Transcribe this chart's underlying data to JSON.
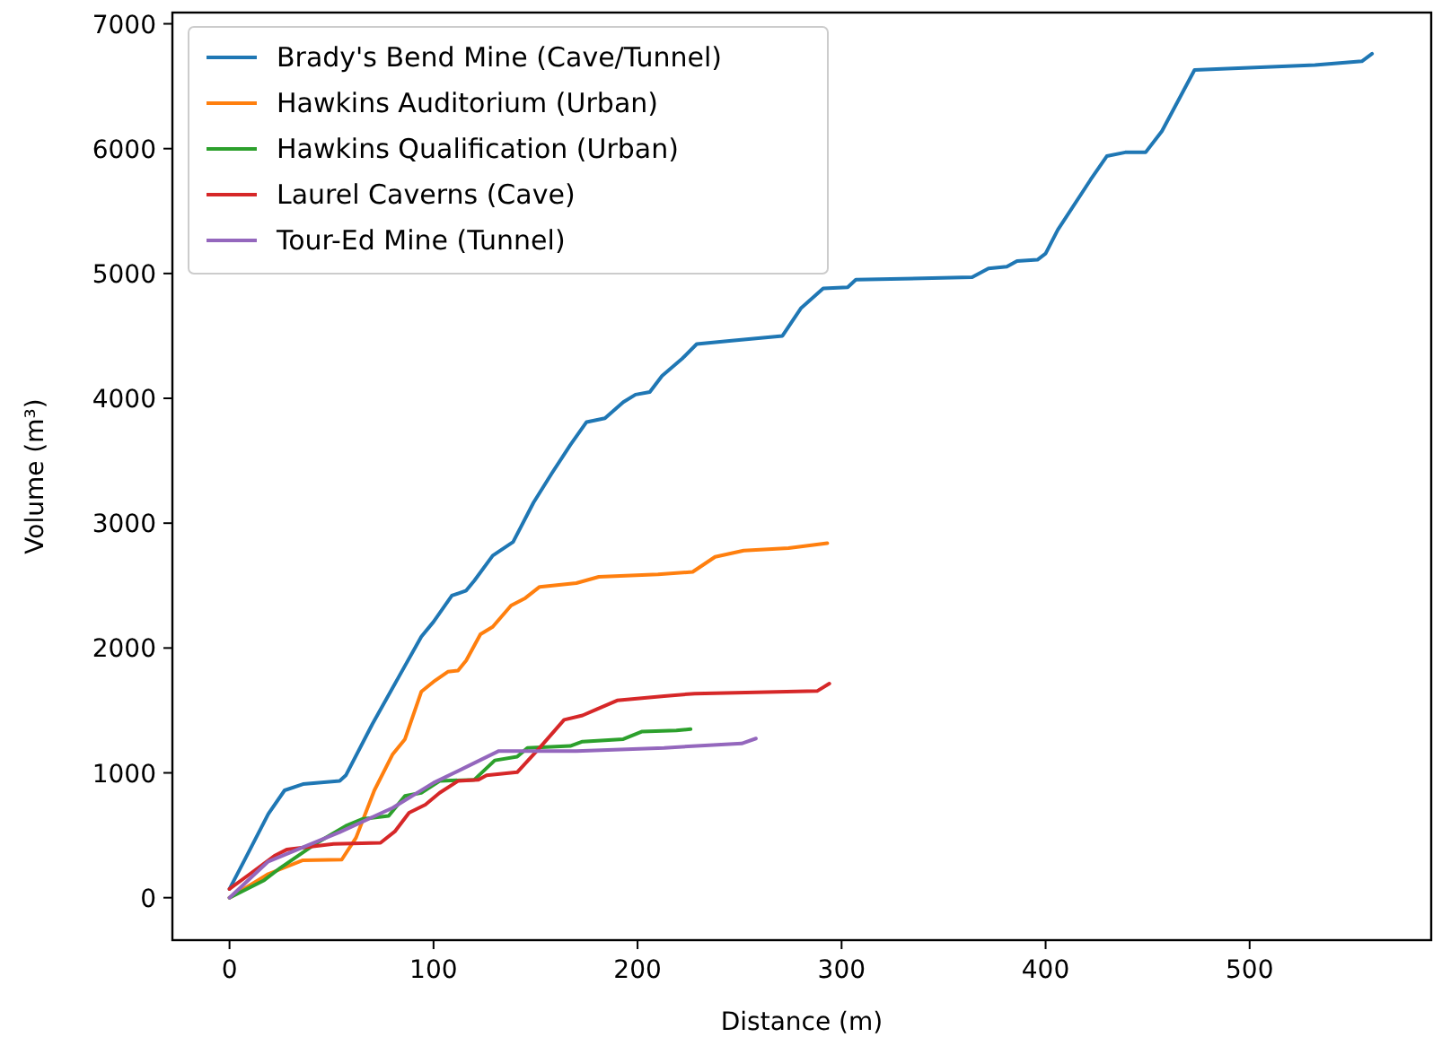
{
  "chart_data": {
    "type": "line",
    "xlabel": "Distance (m)",
    "ylabel": "Volume (m³)",
    "xlim": [
      -28,
      589
    ],
    "ylim": [
      -340,
      7090
    ],
    "xticks": [
      0,
      100,
      200,
      300,
      400,
      500
    ],
    "yticks": [
      0,
      1000,
      2000,
      3000,
      4000,
      5000,
      6000,
      7000
    ],
    "grid": false,
    "legend": "top left",
    "line_style": "solid",
    "marker": "none",
    "series": [
      {
        "name": "Brady's Bend Mine (Cave/Tunnel)",
        "color": "#1f77b4",
        "x": [
          0,
          7,
          19,
          27,
          36,
          54,
          57,
          70,
          83,
          94,
          100,
          109,
          116,
          120,
          129,
          139,
          149,
          158,
          167,
          175,
          184,
          193,
          199,
          206,
          212,
          222,
          229,
          245,
          271,
          280,
          291,
          303,
          307,
          364,
          372,
          381,
          386,
          396,
          400,
          406,
          422,
          430,
          439,
          449,
          457,
          473,
          532,
          555,
          560
        ],
        "values": [
          70,
          290,
          670,
          860,
          910,
          935,
          980,
          1390,
          1770,
          2090,
          2210,
          2420,
          2460,
          2540,
          2740,
          2850,
          3165,
          3400,
          3625,
          3810,
          3840,
          3970,
          4030,
          4050,
          4180,
          4320,
          4435,
          4460,
          4500,
          4720,
          4880,
          4890,
          4950,
          4970,
          5040,
          5055,
          5100,
          5110,
          5160,
          5350,
          5750,
          5940,
          5970,
          5970,
          6140,
          6630,
          6670,
          6700,
          6760
        ]
      },
      {
        "name": "Hawkins Auditorium (Urban)",
        "color": "#ff7f0e",
        "x": [
          0,
          19,
          36,
          55,
          62,
          71,
          80,
          86,
          94,
          100,
          107,
          112,
          116,
          123,
          129,
          138,
          145,
          152,
          170,
          181,
          210,
          227,
          238,
          252,
          274,
          293
        ],
        "values": [
          0,
          190,
          300,
          305,
          480,
          860,
          1150,
          1270,
          1650,
          1730,
          1810,
          1820,
          1900,
          2110,
          2170,
          2340,
          2400,
          2490,
          2520,
          2570,
          2590,
          2610,
          2730,
          2780,
          2800,
          2840
        ]
      },
      {
        "name": "Hawkins Qualification (Urban)",
        "color": "#2ca02c",
        "x": [
          0,
          17,
          25,
          42,
          57,
          65,
          78,
          86,
          94,
          103,
          120,
          130,
          141,
          146,
          167,
          173,
          193,
          202,
          219,
          226
        ],
        "values": [
          0,
          140,
          240,
          430,
          575,
          630,
          655,
          815,
          840,
          935,
          945,
          1100,
          1130,
          1200,
          1215,
          1250,
          1270,
          1330,
          1340,
          1350
        ]
      },
      {
        "name": "Laurel Caverns (Cave)",
        "color": "#d62728",
        "x": [
          0,
          10,
          22,
          28,
          51,
          74,
          81,
          88,
          96,
          103,
          112,
          122,
          126,
          141,
          152,
          164,
          173,
          180,
          190,
          213,
          228,
          288,
          294
        ],
        "values": [
          70,
          190,
          335,
          385,
          430,
          440,
          530,
          680,
          745,
          840,
          935,
          945,
          980,
          1005,
          1200,
          1425,
          1460,
          1510,
          1580,
          1615,
          1635,
          1655,
          1715
        ]
      },
      {
        "name": "Tour-Ed Mine (Tunnel)",
        "color": "#9467bd",
        "x": [
          0,
          19,
          54,
          80,
          100,
          117,
          132,
          170,
          213,
          233,
          251,
          258
        ],
        "values": [
          0,
          290,
          525,
          720,
          920,
          1055,
          1175,
          1175,
          1200,
          1220,
          1235,
          1275
        ]
      }
    ]
  }
}
